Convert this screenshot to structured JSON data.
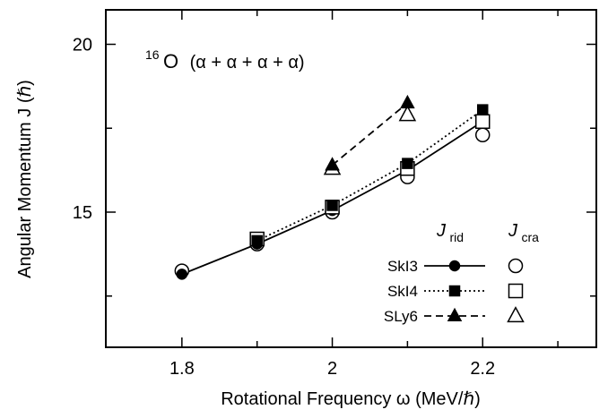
{
  "chart_data": {
    "type": "line",
    "xlabel": "Rotational Frequency ω (MeV/ℏ)",
    "ylabel": "Angular Momentum J (ℏ)",
    "xlim": [
      1.7,
      2.35
    ],
    "ylim": [
      11.0,
      21.0
    ],
    "x_ticks": [
      1.8,
      2.0,
      2.2
    ],
    "x_tick_labels": [
      "1.8",
      "2",
      "2.2"
    ],
    "x_minor_ticks": [
      1.9,
      2.1,
      2.3
    ],
    "y_ticks": [
      15,
      20
    ],
    "y_tick_labels": [
      "15",
      "20"
    ],
    "y_minor_ticks": [
      12.5,
      17.5
    ],
    "annotation": {
      "mass": "16",
      "element": "O",
      "config": "(α + α + α + α)"
    },
    "legend": {
      "col_rid_main": "J",
      "col_rid_sub": "rid",
      "col_cra_main": "J",
      "col_cra_sub": "cra"
    },
    "series": [
      {
        "name": "SkI3",
        "style": "solid",
        "marker": "circle",
        "rid": {
          "x": [
            1.8,
            1.9,
            2.0,
            2.1,
            2.2
          ],
          "y": [
            13.15,
            14.05,
            15.05,
            16.25,
            17.7
          ]
        },
        "cra": {
          "x": [
            1.8,
            1.9,
            2.0,
            2.1,
            2.2
          ],
          "y": [
            13.25,
            14.05,
            15.0,
            16.05,
            17.3
          ]
        }
      },
      {
        "name": "SkI4",
        "style": "dotted",
        "marker": "square",
        "rid": {
          "x": [
            1.9,
            2.0,
            2.1,
            2.2
          ],
          "y": [
            14.15,
            15.2,
            16.45,
            18.05
          ]
        },
        "cra": {
          "x": [
            1.9,
            2.0,
            2.1,
            2.2
          ],
          "y": [
            14.2,
            15.15,
            16.3,
            17.7
          ]
        }
      },
      {
        "name": "SLy6",
        "style": "dashed",
        "marker": "triangle",
        "rid": {
          "x": [
            2.0,
            2.1
          ],
          "y": [
            16.4,
            18.25
          ]
        },
        "cra": {
          "x": [
            2.0,
            2.1
          ],
          "y": [
            16.3,
            17.9
          ]
        }
      }
    ]
  }
}
